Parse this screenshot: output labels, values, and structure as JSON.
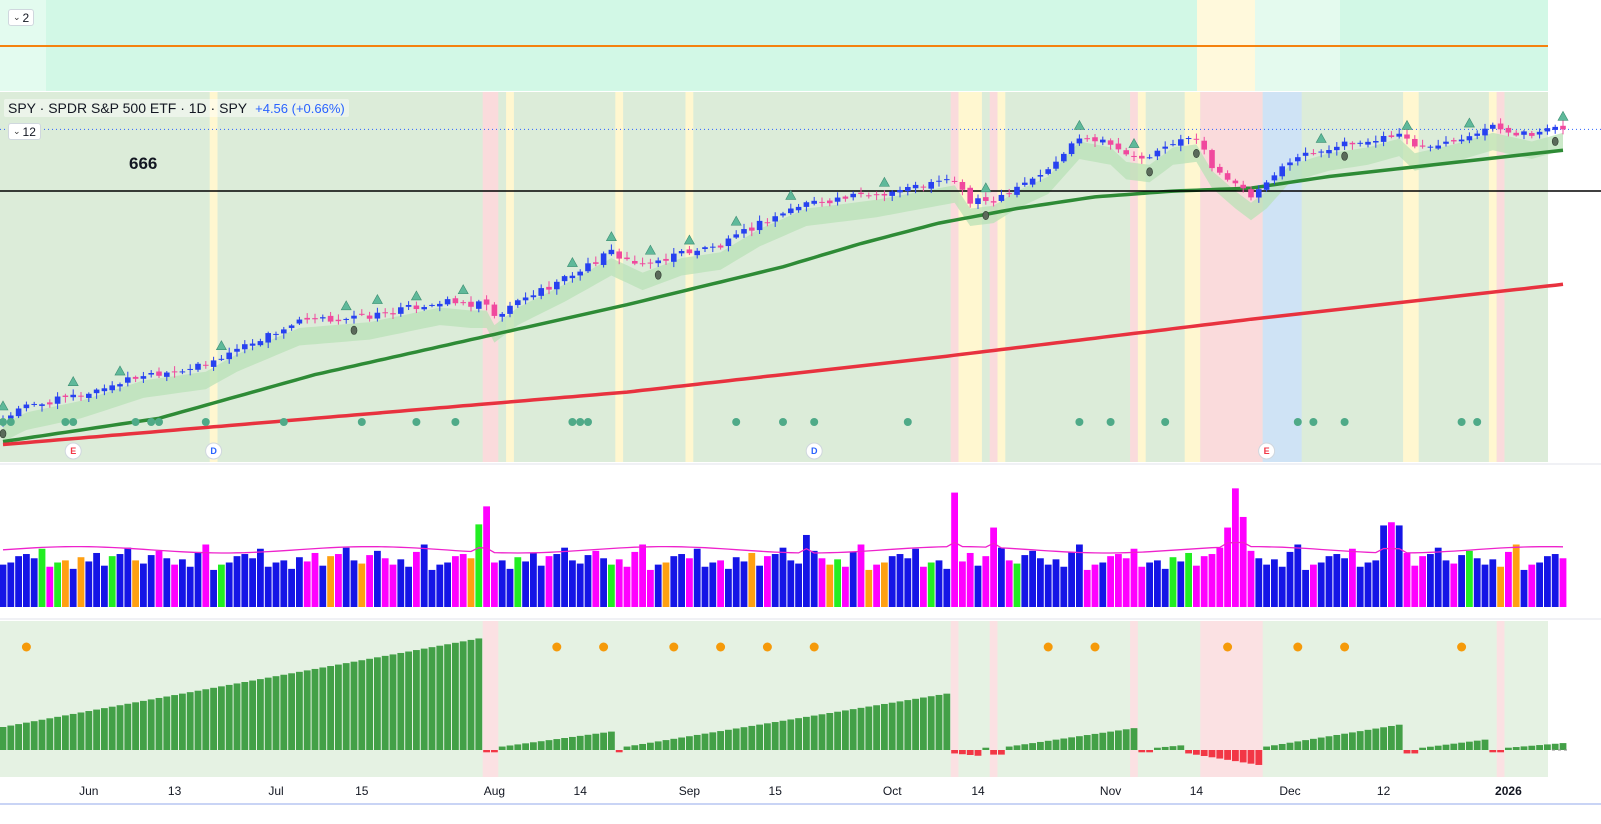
{
  "top_pane": {
    "collapse_count": "2",
    "orange_level": 2.0
  },
  "main_pane": {
    "legend_title": "SPY · SPDR S&P 500 ETF · 1D · SPY",
    "legend_change": "+4.56 (+0.66%)",
    "collapse_count": "12",
    "level_label": "666",
    "horizontal_level": 666
  },
  "x_axis_labels": [
    {
      "text": "Jun",
      "bar": 11,
      "bold": false
    },
    {
      "text": "13",
      "bar": 22,
      "bold": false
    },
    {
      "text": "Jul",
      "bar": 35,
      "bold": false
    },
    {
      "text": "15",
      "bar": 46,
      "bold": false
    },
    {
      "text": "Aug",
      "bar": 63,
      "bold": false
    },
    {
      "text": "14",
      "bar": 74,
      "bold": false
    },
    {
      "text": "Sep",
      "bar": 88,
      "bold": false
    },
    {
      "text": "15",
      "bar": 99,
      "bold": false
    },
    {
      "text": "Oct",
      "bar": 114,
      "bold": false
    },
    {
      "text": "14",
      "bar": 125,
      "bold": false
    },
    {
      "text": "Nov",
      "bar": 142,
      "bold": false
    },
    {
      "text": "14",
      "bar": 153,
      "bold": false
    },
    {
      "text": "Dec",
      "bar": 165,
      "bold": false
    },
    {
      "text": "12",
      "bar": 177,
      "bold": false
    },
    {
      "text": "2026",
      "bar": 193,
      "bold": true
    }
  ],
  "events": [
    {
      "letter": "E",
      "bar": 9,
      "color": "#f23645"
    },
    {
      "letter": "D",
      "bar": 27,
      "color": "#2962ff"
    },
    {
      "letter": "D",
      "bar": 104,
      "color": "#2962ff"
    },
    {
      "letter": "E",
      "bar": 162,
      "color": "#f23645"
    }
  ],
  "colors": {
    "up_candle": "#2741f0",
    "down_candle": "#f0499e",
    "sma_green": "#2e8b36",
    "sma_red": "#e8323f",
    "volume_ma": "#ee22cc",
    "horizontal_line": "#000000",
    "top_orange_line": "#f5820f",
    "mint_bg": "#d2f8e6",
    "zone_green": "#dcecd9",
    "zone_red": "#fadbdc",
    "zone_yellow": "#fff7d0",
    "zone_blue": "#cfe3f5",
    "osc_green": "#43a047",
    "osc_red": "#f23645",
    "dot_teal": "#4faa88",
    "dot_orange": "#f59a0a"
  },
  "chart_data": {
    "type": "candlestick",
    "title": "SPY · SPDR S&P 500 ETF · 1D · SPY",
    "n_bars": 201,
    "price_start": 588,
    "price_series": [
      [
        0,
        588
      ],
      [
        3,
        592
      ],
      [
        10,
        596
      ],
      [
        18,
        603
      ],
      [
        26,
        606
      ],
      [
        30,
        612
      ],
      [
        38,
        621
      ],
      [
        47,
        623
      ],
      [
        56,
        628
      ],
      [
        60,
        627
      ],
      [
        62,
        627
      ],
      [
        63,
        622
      ],
      [
        66,
        628
      ],
      [
        72,
        636
      ],
      [
        78,
        645
      ],
      [
        82,
        640
      ],
      [
        87,
        645
      ],
      [
        92,
        647
      ],
      [
        97,
        655
      ],
      [
        103,
        662
      ],
      [
        112,
        665
      ],
      [
        120,
        669
      ],
      [
        122,
        670
      ],
      [
        124,
        662
      ],
      [
        127,
        663
      ],
      [
        130,
        668
      ],
      [
        134,
        673
      ],
      [
        138,
        685
      ],
      [
        142,
        683
      ],
      [
        144,
        678
      ],
      [
        147,
        677
      ],
      [
        150,
        683
      ],
      [
        153,
        684
      ],
      [
        155,
        675
      ],
      [
        158,
        668
      ],
      [
        160,
        664
      ],
      [
        162,
        668
      ],
      [
        165,
        677
      ],
      [
        170,
        681
      ],
      [
        175,
        683
      ],
      [
        179,
        686
      ],
      [
        181,
        681
      ],
      [
        186,
        684
      ],
      [
        191,
        688
      ],
      [
        196,
        685
      ],
      [
        200,
        688
      ]
    ],
    "ema_ribbon_offset": 6,
    "sma_green": [
      [
        0,
        580
      ],
      [
        20,
        588
      ],
      [
        40,
        603
      ],
      [
        60,
        615
      ],
      [
        80,
        627
      ],
      [
        100,
        640
      ],
      [
        110,
        648
      ],
      [
        120,
        655
      ],
      [
        130,
        660
      ],
      [
        140,
        664
      ],
      [
        150,
        666
      ],
      [
        160,
        667
      ],
      [
        170,
        671
      ],
      [
        180,
        674
      ],
      [
        190,
        677
      ],
      [
        200,
        680
      ]
    ],
    "sma_red": [
      [
        0,
        579
      ],
      [
        40,
        588
      ],
      [
        80,
        597
      ],
      [
        120,
        609
      ],
      [
        160,
        622
      ],
      [
        200,
        634
      ]
    ],
    "y_range": [
      573,
      700
    ],
    "oversold_dots_bars": [
      0,
      1,
      8,
      9,
      17,
      19,
      20,
      26,
      36,
      46,
      53,
      58,
      73,
      74,
      75,
      94,
      100,
      104,
      116,
      138,
      142,
      149,
      166,
      168,
      172,
      187,
      189
    ],
    "triangle_markers_bars": [
      0,
      9,
      15,
      28,
      44,
      48,
      53,
      59,
      73,
      78,
      83,
      88,
      94,
      101,
      113,
      126,
      138,
      145,
      169,
      180,
      188,
      200
    ],
    "dark_markers_bars": [
      0,
      45,
      84,
      126,
      147,
      153,
      172,
      199
    ],
    "shaded_zones": [
      {
        "start": 62,
        "end": 63,
        "color": "red"
      },
      {
        "start": 65,
        "end": 65,
        "color": "yellow"
      },
      {
        "start": 27,
        "end": 27,
        "color": "yellow"
      },
      {
        "start": 79,
        "end": 79,
        "color": "yellow"
      },
      {
        "start": 88,
        "end": 88,
        "color": "yellow"
      },
      {
        "start": 122,
        "end": 122,
        "color": "red"
      },
      {
        "start": 123,
        "end": 125,
        "color": "yellow"
      },
      {
        "start": 127,
        "end": 127,
        "color": "red"
      },
      {
        "start": 128,
        "end": 128,
        "color": "yellow"
      },
      {
        "start": 145,
        "end": 145,
        "color": "red"
      },
      {
        "start": 146,
        "end": 146,
        "color": "yellow"
      },
      {
        "start": 152,
        "end": 153,
        "color": "yellow"
      },
      {
        "start": 154,
        "end": 161,
        "color": "red"
      },
      {
        "start": 162,
        "end": 166,
        "color": "blue"
      },
      {
        "start": 180,
        "end": 181,
        "color": "yellow"
      },
      {
        "start": 191,
        "end": 191,
        "color": "yellow"
      },
      {
        "start": 192,
        "end": 192,
        "color": "red"
      }
    ],
    "volume": {
      "pattern": [
        40,
        42,
        48,
        50,
        46,
        55,
        38,
        42,
        44,
        36,
        47,
        43,
        51,
        39,
        48,
        50,
        56,
        44,
        41,
        49,
        53,
        46,
        40,
        45,
        38,
        52,
        59,
        35
      ],
      "spikes": [
        {
          "bar": 61,
          "value": 78
        },
        {
          "bar": 62,
          "value": 95
        },
        {
          "bar": 122,
          "value": 108
        },
        {
          "bar": 127,
          "value": 75
        },
        {
          "bar": 158,
          "value": 112
        },
        {
          "bar": 159,
          "value": 85
        },
        {
          "bar": 157,
          "value": 75
        },
        {
          "bar": 177,
          "value": 77
        },
        {
          "bar": 178,
          "value": 80
        },
        {
          "bar": 179,
          "value": 77
        },
        {
          "bar": 103,
          "value": 68
        },
        {
          "bar": 127,
          "value": 75
        }
      ],
      "ma_level": 54,
      "max": 118
    },
    "oscillator": {
      "segments": [
        {
          "start": 0,
          "end": 61,
          "from": 0.2,
          "to": 0.97
        },
        {
          "start": 62,
          "end": 63,
          "from": -0.02,
          "to": -0.02
        },
        {
          "start": 64,
          "end": 78,
          "from": 0.03,
          "to": 0.16
        },
        {
          "start": 79,
          "end": 79,
          "from": -0.02,
          "to": -0.02
        },
        {
          "start": 80,
          "end": 121,
          "from": 0.03,
          "to": 0.49
        },
        {
          "start": 122,
          "end": 125,
          "from": -0.03,
          "to": -0.05
        },
        {
          "start": 126,
          "end": 126,
          "from": 0.02,
          "to": 0.02
        },
        {
          "start": 127,
          "end": 128,
          "from": -0.04,
          "to": -0.04
        },
        {
          "start": 129,
          "end": 145,
          "from": 0.03,
          "to": 0.19
        },
        {
          "start": 146,
          "end": 147,
          "from": -0.02,
          "to": -0.02
        },
        {
          "start": 148,
          "end": 151,
          "from": 0.02,
          "to": 0.04
        },
        {
          "start": 152,
          "end": 161,
          "from": -0.03,
          "to": -0.13
        },
        {
          "start": 162,
          "end": 179,
          "from": 0.03,
          "to": 0.22
        },
        {
          "start": 180,
          "end": 181,
          "from": -0.03,
          "to": -0.03
        },
        {
          "start": 182,
          "end": 190,
          "from": 0.02,
          "to": 0.09
        },
        {
          "start": 191,
          "end": 192,
          "from": -0.02,
          "to": -0.02
        },
        {
          "start": 193,
          "end": 200,
          "from": 0.02,
          "to": 0.06
        }
      ],
      "orange_dots_bars": [
        3,
        71,
        77,
        86,
        92,
        98,
        104,
        134,
        140,
        157,
        166,
        172,
        187
      ]
    }
  }
}
